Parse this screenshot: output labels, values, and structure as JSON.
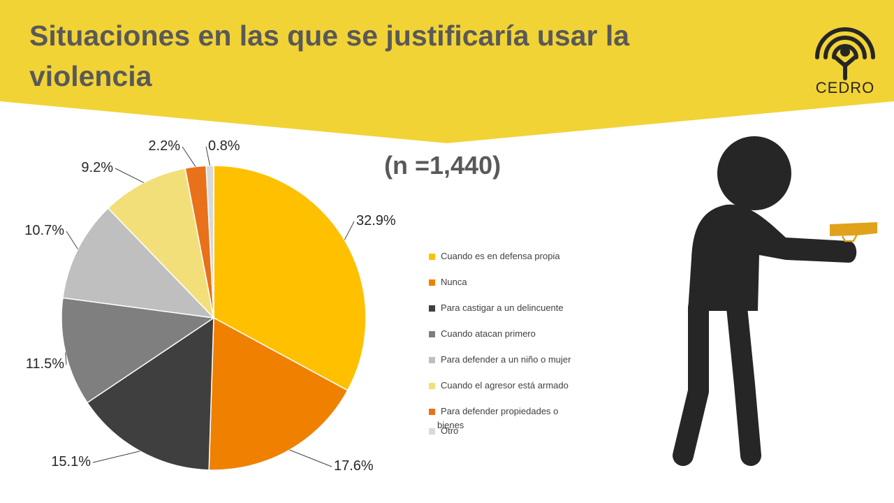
{
  "slide": {
    "title": "Situaciones en las que se justificaría usar la violencia",
    "logo_text": "CEDRO",
    "sample_size": "(n =1,440)"
  },
  "colors": {
    "banner": "#f2d335",
    "title": "#595959",
    "figure": "#262626",
    "gun": "#e0a21b"
  },
  "icons": [
    "cedro-logo",
    "person-with-gun-icon"
  ],
  "chart_data": {
    "type": "pie",
    "title": "",
    "categories": [
      "Cuando es en defensa propia",
      "Nunca",
      "Para castigar a un delincuente",
      "Cuando atacan primero",
      "Para defender a un niño o mujer",
      "Cuando el agresor está armado",
      "Para defender propiedades o bienes",
      "Otro"
    ],
    "values": [
      32.9,
      17.6,
      15.1,
      11.5,
      10.7,
      9.2,
      2.2,
      0.8
    ],
    "labels": [
      "32.9%",
      "17.6%",
      "15.1%",
      "11.5%",
      "10.7%",
      "9.2%",
      "2.2%",
      "0.8%"
    ],
    "colors": [
      "#ffc000",
      "#f08000",
      "#3f3f3f",
      "#7f7f7f",
      "#bfbfbf",
      "#f2df7a",
      "#e8711a",
      "#d9d9d9"
    ],
    "legend_position": "right",
    "start": "top, clockwise"
  }
}
